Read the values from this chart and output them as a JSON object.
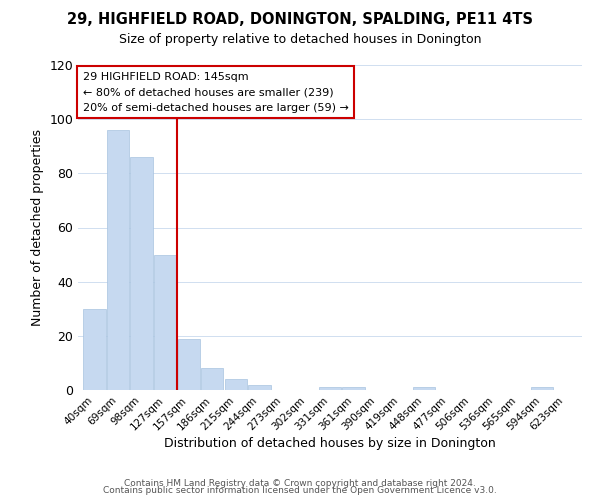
{
  "title": "29, HIGHFIELD ROAD, DONINGTON, SPALDING, PE11 4TS",
  "subtitle": "Size of property relative to detached houses in Donington",
  "xlabel": "Distribution of detached houses by size in Donington",
  "ylabel": "Number of detached properties",
  "bar_labels": [
    "40sqm",
    "69sqm",
    "98sqm",
    "127sqm",
    "157sqm",
    "186sqm",
    "215sqm",
    "244sqm",
    "273sqm",
    "302sqm",
    "331sqm",
    "361sqm",
    "390sqm",
    "419sqm",
    "448sqm",
    "477sqm",
    "506sqm",
    "536sqm",
    "565sqm",
    "594sqm",
    "623sqm"
  ],
  "bar_values": [
    30,
    96,
    86,
    50,
    19,
    8,
    4,
    2,
    0,
    0,
    1,
    1,
    0,
    0,
    1,
    0,
    0,
    0,
    0,
    1,
    0
  ],
  "bar_color": "#c6d9f0",
  "bar_edge_color": "#a8c4e0",
  "annotation_title": "29 HIGHFIELD ROAD: 145sqm",
  "annotation_line1": "← 80% of detached houses are smaller (239)",
  "annotation_line2": "20% of semi-detached houses are larger (59) →",
  "annotation_box_color": "#ffffff",
  "annotation_box_edge": "#cc0000",
  "red_line_color": "#cc0000",
  "footer1": "Contains HM Land Registry data © Crown copyright and database right 2024.",
  "footer2": "Contains public sector information licensed under the Open Government Licence v3.0.",
  "ylim": [
    0,
    120
  ],
  "figsize": [
    6.0,
    5.0
  ],
  "dpi": 100
}
